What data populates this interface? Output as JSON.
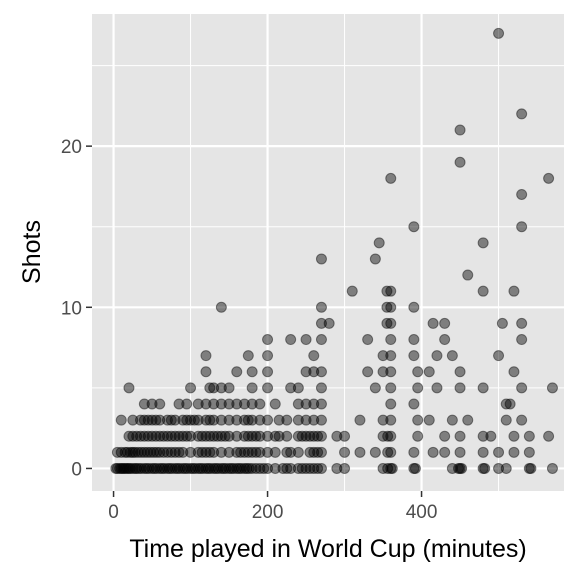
{
  "chart_data": {
    "type": "scatter",
    "title": "",
    "xlabel": "Time played in World Cup (minutes)",
    "ylabel": "Shots",
    "xlim": [
      -28,
      585
    ],
    "ylim": [
      -1.4,
      28.2
    ],
    "x_ticks": [
      0,
      200,
      400
    ],
    "y_ticks": [
      0,
      10,
      20
    ],
    "grid": true,
    "legend": "none",
    "colors": {
      "panel": "#e5e5e5",
      "grid": "#ffffff",
      "point": "#000000",
      "tick_text": "#4d4d4d"
    },
    "point_opacity": 0.45,
    "points": [
      [
        3,
        0
      ],
      [
        5,
        0
      ],
      [
        8,
        0
      ],
      [
        10,
        0
      ],
      [
        12,
        0
      ],
      [
        14,
        0
      ],
      [
        16,
        0
      ],
      [
        18,
        0
      ],
      [
        20,
        0
      ],
      [
        22,
        0
      ],
      [
        25,
        0
      ],
      [
        28,
        0
      ],
      [
        30,
        0
      ],
      [
        33,
        0
      ],
      [
        36,
        0
      ],
      [
        40,
        0
      ],
      [
        43,
        0
      ],
      [
        46,
        0
      ],
      [
        50,
        0
      ],
      [
        53,
        0
      ],
      [
        56,
        0
      ],
      [
        60,
        0
      ],
      [
        63,
        0
      ],
      [
        66,
        0
      ],
      [
        70,
        0
      ],
      [
        73,
        0
      ],
      [
        76,
        0
      ],
      [
        80,
        0
      ],
      [
        83,
        0
      ],
      [
        86,
        0
      ],
      [
        90,
        0
      ],
      [
        93,
        0
      ],
      [
        96,
        0
      ],
      [
        100,
        0
      ],
      [
        103,
        0
      ],
      [
        106,
        0
      ],
      [
        110,
        0
      ],
      [
        113,
        0
      ],
      [
        116,
        0
      ],
      [
        120,
        0
      ],
      [
        123,
        0
      ],
      [
        126,
        0
      ],
      [
        130,
        0
      ],
      [
        133,
        0
      ],
      [
        136,
        0
      ],
      [
        140,
        0
      ],
      [
        143,
        0
      ],
      [
        146,
        0
      ],
      [
        150,
        0
      ],
      [
        153,
        0
      ],
      [
        156,
        0
      ],
      [
        160,
        0
      ],
      [
        163,
        0
      ],
      [
        166,
        0
      ],
      [
        170,
        0
      ],
      [
        173,
        0
      ],
      [
        176,
        0
      ],
      [
        180,
        0
      ],
      [
        185,
        0
      ],
      [
        190,
        0
      ],
      [
        195,
        0
      ],
      [
        200,
        0
      ],
      [
        210,
        0
      ],
      [
        220,
        0
      ],
      [
        225,
        0
      ],
      [
        230,
        0
      ],
      [
        240,
        0
      ],
      [
        245,
        0
      ],
      [
        250,
        0
      ],
      [
        255,
        0
      ],
      [
        260,
        0
      ],
      [
        265,
        0
      ],
      [
        270,
        0
      ],
      [
        290,
        0
      ],
      [
        300,
        0
      ],
      [
        350,
        0
      ],
      [
        356,
        0
      ],
      [
        360,
        0
      ],
      [
        362,
        0
      ],
      [
        390,
        0
      ],
      [
        392,
        0
      ],
      [
        440,
        0
      ],
      [
        448,
        0
      ],
      [
        450,
        0
      ],
      [
        452,
        0
      ],
      [
        480,
        0
      ],
      [
        482,
        0
      ],
      [
        500,
        0
      ],
      [
        510,
        0
      ],
      [
        540,
        0
      ],
      [
        542,
        0
      ],
      [
        570,
        0
      ],
      [
        5,
        1
      ],
      [
        10,
        1
      ],
      [
        15,
        1
      ],
      [
        18,
        1
      ],
      [
        22,
        1
      ],
      [
        25,
        1
      ],
      [
        28,
        1
      ],
      [
        32,
        1
      ],
      [
        36,
        1
      ],
      [
        40,
        1
      ],
      [
        44,
        1
      ],
      [
        48,
        1
      ],
      [
        52,
        1
      ],
      [
        56,
        1
      ],
      [
        60,
        1
      ],
      [
        65,
        1
      ],
      [
        70,
        1
      ],
      [
        75,
        1
      ],
      [
        80,
        1
      ],
      [
        85,
        1
      ],
      [
        90,
        1
      ],
      [
        100,
        1
      ],
      [
        110,
        1
      ],
      [
        115,
        1
      ],
      [
        120,
        1
      ],
      [
        125,
        1
      ],
      [
        130,
        1
      ],
      [
        140,
        1
      ],
      [
        150,
        1
      ],
      [
        160,
        1
      ],
      [
        165,
        1
      ],
      [
        170,
        1
      ],
      [
        175,
        1
      ],
      [
        180,
        1
      ],
      [
        185,
        1
      ],
      [
        190,
        1
      ],
      [
        200,
        1
      ],
      [
        210,
        1
      ],
      [
        225,
        1
      ],
      [
        230,
        1
      ],
      [
        240,
        1
      ],
      [
        255,
        1
      ],
      [
        260,
        1
      ],
      [
        265,
        1
      ],
      [
        270,
        1
      ],
      [
        300,
        1
      ],
      [
        320,
        1
      ],
      [
        340,
        1
      ],
      [
        356,
        1
      ],
      [
        360,
        1
      ],
      [
        390,
        1
      ],
      [
        415,
        1
      ],
      [
        430,
        1
      ],
      [
        450,
        1
      ],
      [
        480,
        1
      ],
      [
        500,
        1
      ],
      [
        520,
        1
      ],
      [
        540,
        1
      ],
      [
        20,
        2
      ],
      [
        25,
        2
      ],
      [
        30,
        2
      ],
      [
        35,
        2
      ],
      [
        40,
        2
      ],
      [
        45,
        2
      ],
      [
        50,
        2
      ],
      [
        55,
        2
      ],
      [
        60,
        2
      ],
      [
        65,
        2
      ],
      [
        70,
        2
      ],
      [
        75,
        2
      ],
      [
        80,
        2
      ],
      [
        85,
        2
      ],
      [
        90,
        2
      ],
      [
        95,
        2
      ],
      [
        100,
        2
      ],
      [
        110,
        2
      ],
      [
        115,
        2
      ],
      [
        120,
        2
      ],
      [
        125,
        2
      ],
      [
        130,
        2
      ],
      [
        135,
        2
      ],
      [
        140,
        2
      ],
      [
        145,
        2
      ],
      [
        150,
        2
      ],
      [
        160,
        2
      ],
      [
        170,
        2
      ],
      [
        175,
        2
      ],
      [
        180,
        2
      ],
      [
        185,
        2
      ],
      [
        190,
        2
      ],
      [
        200,
        2
      ],
      [
        210,
        2
      ],
      [
        215,
        2
      ],
      [
        225,
        2
      ],
      [
        240,
        2
      ],
      [
        245,
        2
      ],
      [
        250,
        2
      ],
      [
        255,
        2
      ],
      [
        260,
        2
      ],
      [
        265,
        2
      ],
      [
        270,
        2
      ],
      [
        290,
        2
      ],
      [
        300,
        2
      ],
      [
        350,
        2
      ],
      [
        356,
        2
      ],
      [
        360,
        2
      ],
      [
        395,
        2
      ],
      [
        430,
        2
      ],
      [
        450,
        2
      ],
      [
        480,
        2
      ],
      [
        490,
        2
      ],
      [
        520,
        2
      ],
      [
        540,
        2
      ],
      [
        565,
        2
      ],
      [
        10,
        3
      ],
      [
        25,
        3
      ],
      [
        35,
        3
      ],
      [
        40,
        3
      ],
      [
        45,
        3
      ],
      [
        50,
        3
      ],
      [
        55,
        3
      ],
      [
        60,
        3
      ],
      [
        70,
        3
      ],
      [
        75,
        3
      ],
      [
        80,
        3
      ],
      [
        90,
        3
      ],
      [
        95,
        3
      ],
      [
        100,
        3
      ],
      [
        105,
        3
      ],
      [
        110,
        3
      ],
      [
        120,
        3
      ],
      [
        125,
        3
      ],
      [
        130,
        3
      ],
      [
        140,
        3
      ],
      [
        150,
        3
      ],
      [
        160,
        3
      ],
      [
        170,
        3
      ],
      [
        175,
        3
      ],
      [
        180,
        3
      ],
      [
        190,
        3
      ],
      [
        200,
        3
      ],
      [
        215,
        3
      ],
      [
        225,
        3
      ],
      [
        240,
        3
      ],
      [
        250,
        3
      ],
      [
        260,
        3
      ],
      [
        270,
        3
      ],
      [
        320,
        3
      ],
      [
        350,
        3
      ],
      [
        360,
        3
      ],
      [
        395,
        3
      ],
      [
        410,
        3
      ],
      [
        440,
        3
      ],
      [
        460,
        3
      ],
      [
        510,
        3
      ],
      [
        530,
        3
      ],
      [
        40,
        4
      ],
      [
        50,
        4
      ],
      [
        60,
        4
      ],
      [
        85,
        4
      ],
      [
        95,
        4
      ],
      [
        110,
        4
      ],
      [
        120,
        4
      ],
      [
        130,
        4
      ],
      [
        140,
        4
      ],
      [
        150,
        4
      ],
      [
        160,
        4
      ],
      [
        170,
        4
      ],
      [
        180,
        4
      ],
      [
        190,
        4
      ],
      [
        210,
        4
      ],
      [
        240,
        4
      ],
      [
        250,
        4
      ],
      [
        260,
        4
      ],
      [
        270,
        4
      ],
      [
        360,
        4
      ],
      [
        390,
        4
      ],
      [
        510,
        4
      ],
      [
        515,
        4
      ],
      [
        20,
        5
      ],
      [
        100,
        5
      ],
      [
        125,
        5
      ],
      [
        130,
        5
      ],
      [
        140,
        5
      ],
      [
        150,
        5
      ],
      [
        180,
        5
      ],
      [
        200,
        5
      ],
      [
        230,
        5
      ],
      [
        240,
        5
      ],
      [
        270,
        5
      ],
      [
        340,
        5
      ],
      [
        360,
        5
      ],
      [
        395,
        5
      ],
      [
        420,
        5
      ],
      [
        450,
        5
      ],
      [
        480,
        5
      ],
      [
        530,
        5
      ],
      [
        570,
        5
      ],
      [
        120,
        6
      ],
      [
        160,
        6
      ],
      [
        180,
        6
      ],
      [
        200,
        6
      ],
      [
        250,
        6
      ],
      [
        260,
        6
      ],
      [
        270,
        6
      ],
      [
        330,
        6
      ],
      [
        350,
        6
      ],
      [
        360,
        6
      ],
      [
        395,
        6
      ],
      [
        410,
        6
      ],
      [
        450,
        6
      ],
      [
        520,
        6
      ],
      [
        120,
        7
      ],
      [
        175,
        7
      ],
      [
        200,
        7
      ],
      [
        260,
        7
      ],
      [
        350,
        7
      ],
      [
        360,
        7
      ],
      [
        390,
        7
      ],
      [
        420,
        7
      ],
      [
        440,
        7
      ],
      [
        500,
        7
      ],
      [
        200,
        8
      ],
      [
        230,
        8
      ],
      [
        250,
        8
      ],
      [
        270,
        8
      ],
      [
        330,
        8
      ],
      [
        360,
        8
      ],
      [
        390,
        8
      ],
      [
        430,
        8
      ],
      [
        530,
        8
      ],
      [
        270,
        9
      ],
      [
        280,
        9
      ],
      [
        355,
        9
      ],
      [
        360,
        9
      ],
      [
        415,
        9
      ],
      [
        430,
        9
      ],
      [
        505,
        9
      ],
      [
        530,
        9
      ],
      [
        140,
        10
      ],
      [
        270,
        10
      ],
      [
        355,
        10
      ],
      [
        360,
        10
      ],
      [
        390,
        10
      ],
      [
        310,
        11
      ],
      [
        355,
        11
      ],
      [
        360,
        11
      ],
      [
        480,
        11
      ],
      [
        520,
        11
      ],
      [
        460,
        12
      ],
      [
        270,
        13
      ],
      [
        340,
        13
      ],
      [
        345,
        14
      ],
      [
        480,
        14
      ],
      [
        390,
        15
      ],
      [
        530,
        15
      ],
      [
        530,
        17
      ],
      [
        360,
        18
      ],
      [
        565,
        18
      ],
      [
        450,
        19
      ],
      [
        450,
        21
      ],
      [
        530,
        22
      ],
      [
        500,
        27
      ]
    ]
  }
}
